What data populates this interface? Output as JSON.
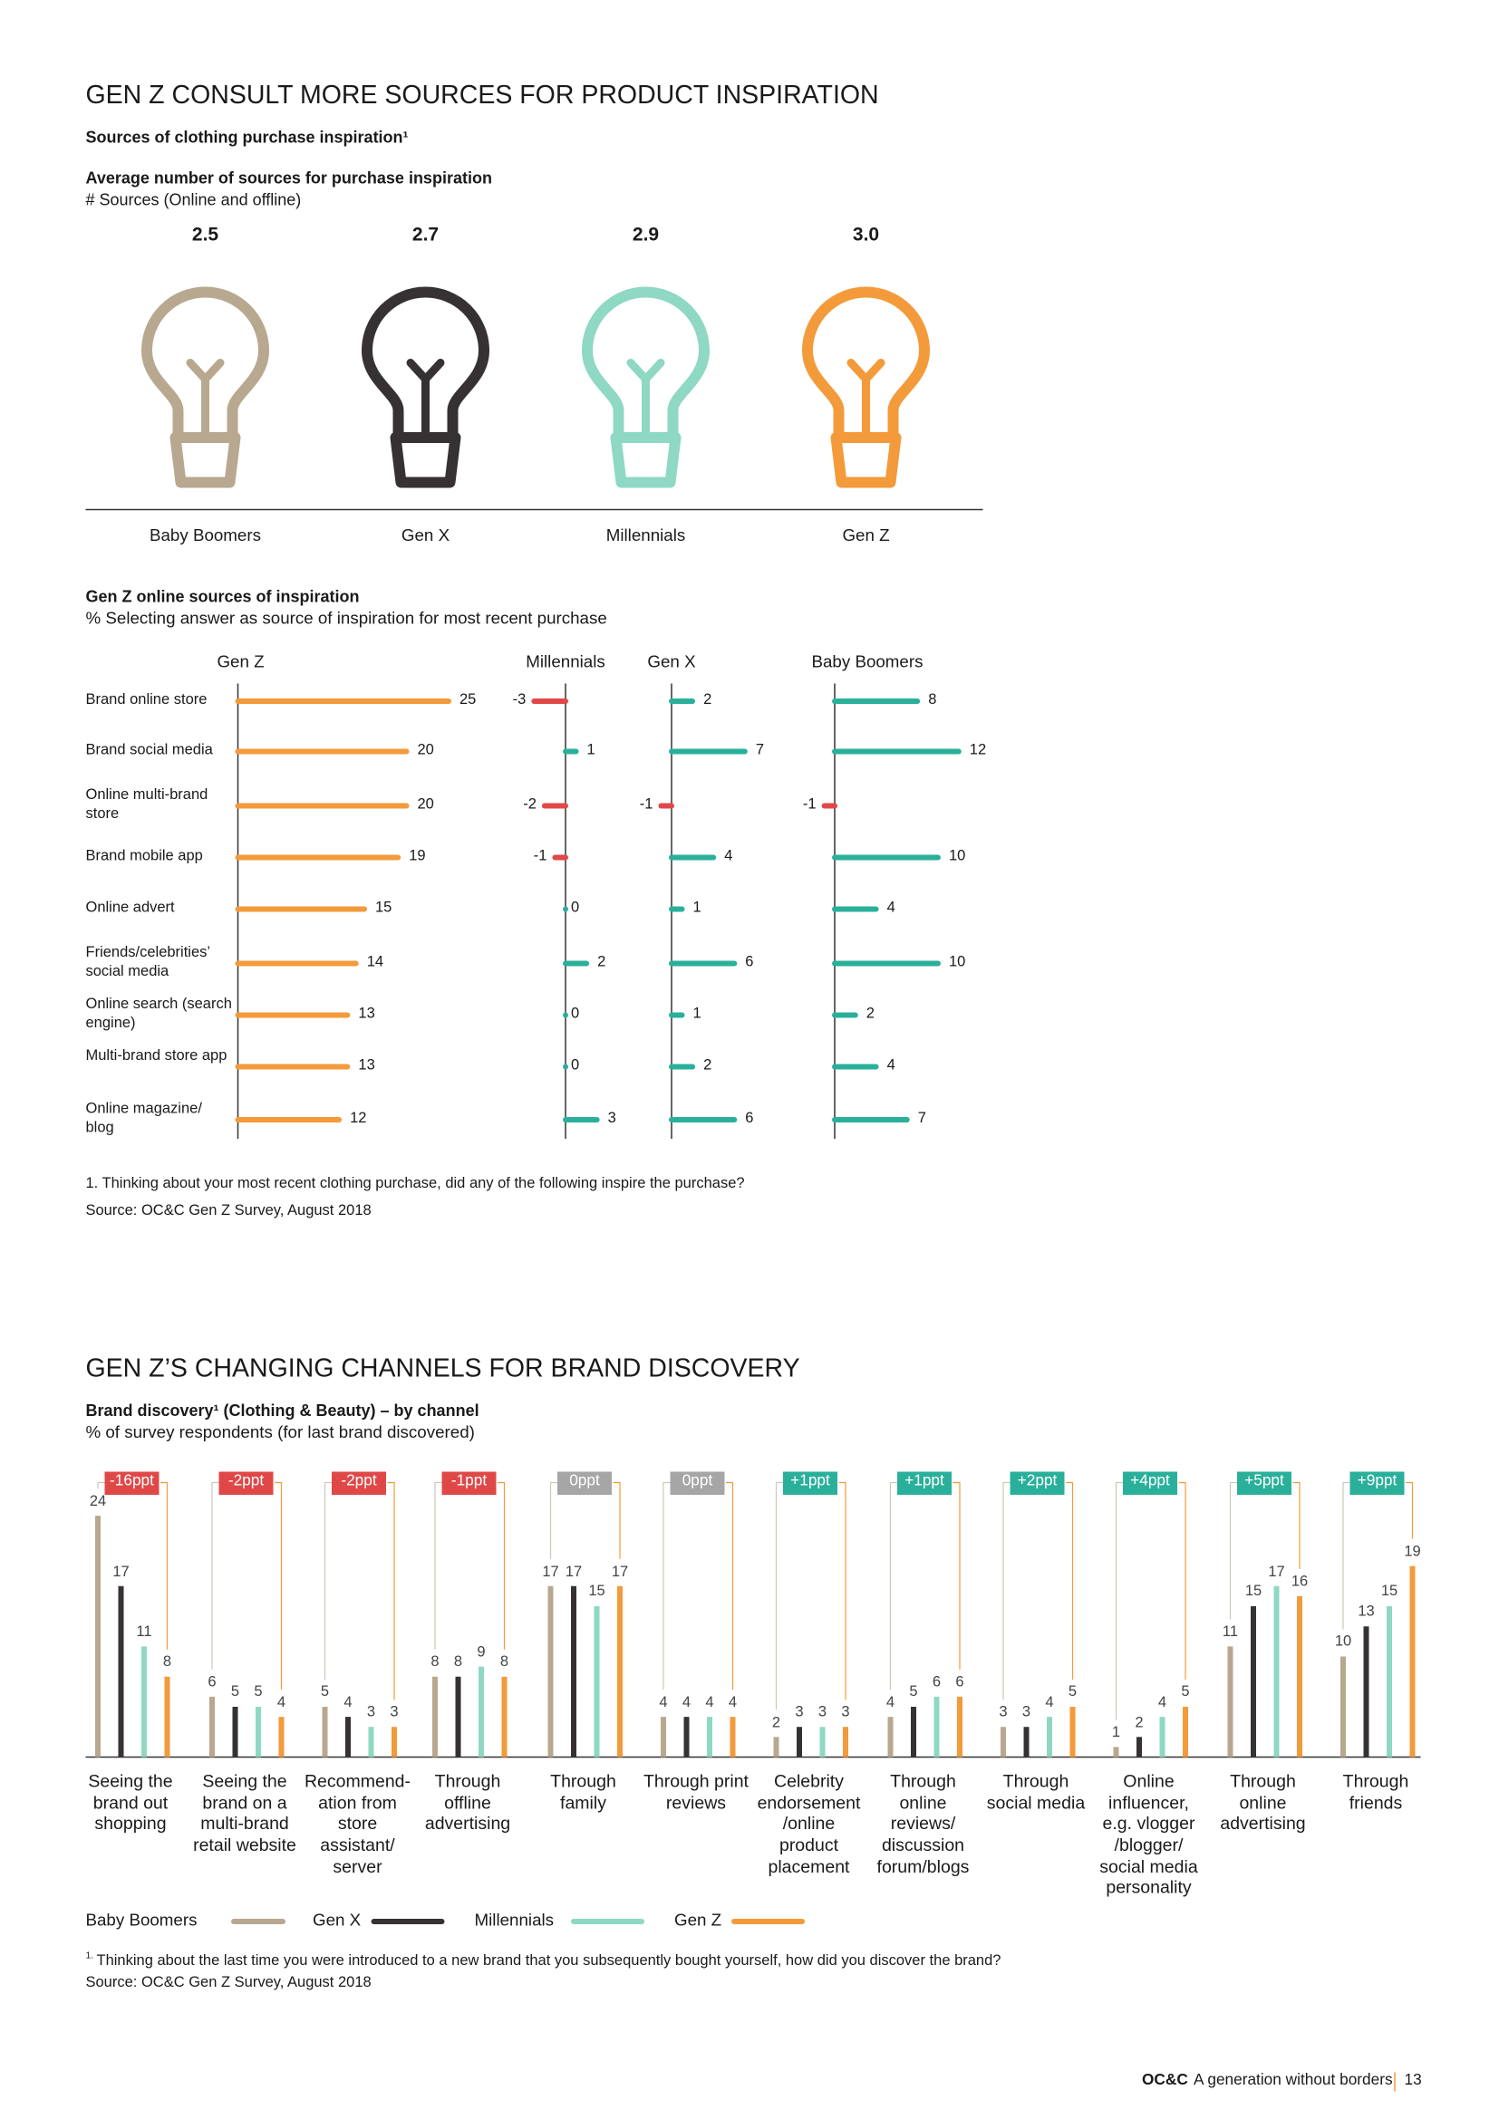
{
  "chart_data": [
    {
      "type": "pictogram",
      "heading": "GEN Z CONSULT MORE SOURCES FOR PRODUCT INSPIRATION",
      "subheading": "Sources of clothing purchase inspiration¹",
      "title": "Average number of sources for purchase inspiration",
      "subtitle": "# Sources (Online and offline)",
      "categories": [
        "Baby Boomers",
        "Gen X",
        "Millennials",
        "Gen Z"
      ],
      "values": [
        2.5,
        2.7,
        2.9,
        3.0
      ],
      "value_labels": [
        "2.5",
        "2.7",
        "2.9",
        "3.0"
      ],
      "colors": [
        "#b8a88f",
        "#363233",
        "#8fd8c3",
        "#f39a3b"
      ]
    },
    {
      "type": "bar-panels",
      "title": "Gen Z online sources of inspiration",
      "subtitle": "% Selecting answer as source of inspiration for most recent purchase",
      "categories": [
        "Brand online store",
        "Brand social media",
        "Online multi-brand store",
        "Brand mobile app",
        "Online advert",
        "Friends/celebrities’ social media",
        "Online search (search engine)",
        "Multi-brand store app",
        "Online magazine/ blog"
      ],
      "series": [
        {
          "name": "Gen Z",
          "color": "#f39a3b",
          "values": [
            25,
            20,
            20,
            19,
            15,
            14,
            13,
            13,
            12
          ]
        },
        {
          "name": "Millennials",
          "color": "#2ab09a",
          "values": [
            -3,
            1,
            -2,
            -1,
            0,
            2,
            0,
            0,
            3
          ]
        },
        {
          "name": "Gen X",
          "color": "#2ab09a",
          "values": [
            2,
            7,
            -1,
            4,
            1,
            6,
            1,
            2,
            6
          ]
        },
        {
          "name": "Baby Boomers",
          "color": "#2ab09a",
          "values": [
            8,
            12,
            -1,
            10,
            4,
            10,
            2,
            4,
            7
          ]
        }
      ],
      "negative_color": "#e04848",
      "footnote": "1. Thinking about your most recent clothing purchase, did any of the following inspire the purchase?",
      "source": "Source: OC&C Gen Z Survey, August 2018"
    },
    {
      "type": "grouped-bar",
      "heading": "GEN Z’S CHANGING CHANNELS FOR BRAND DISCOVERY",
      "title": "Brand discovery¹ (Clothing & Beauty) – by channel",
      "subtitle": "% of survey respondents (for last brand discovered)",
      "categories": [
        "Seeing the brand out shopping",
        "Seeing the brand on a multi-brand retail website",
        "Recommend-ation from store assistant/ server",
        "Through offline advertising",
        "Through family",
        "Through print reviews",
        "Celebrity endorsement /online product placement",
        "Through online reviews/ discussion forum/blogs",
        "Through social media",
        "Online influencer, e.g. vlogger /blogger/ social media personality",
        "Through online advertising",
        "Through friends"
      ],
      "series": [
        {
          "name": "Baby Boomers",
          "color": "#b8a88f",
          "values": [
            24,
            6,
            5,
            8,
            17,
            4,
            2,
            4,
            3,
            1,
            11,
            10
          ]
        },
        {
          "name": "Gen X",
          "color": "#363233",
          "values": [
            17,
            5,
            4,
            8,
            17,
            4,
            3,
            5,
            3,
            2,
            15,
            13
          ]
        },
        {
          "name": "Millennials",
          "color": "#8fd8c3",
          "values": [
            11,
            5,
            3,
            9,
            15,
            4,
            3,
            6,
            4,
            4,
            17,
            15
          ]
        },
        {
          "name": "Gen Z",
          "color": "#f39a3b",
          "values": [
            8,
            4,
            3,
            8,
            17,
            4,
            3,
            6,
            5,
            5,
            16,
            19
          ]
        }
      ],
      "annotations": [
        "-16ppt",
        "-2ppt",
        "-2ppt",
        "-1ppt",
        "0ppt",
        "0ppt",
        "+1ppt",
        "+1ppt",
        "+2ppt",
        "+4ppt",
        "+5ppt",
        "+9ppt"
      ],
      "annotation_colors": [
        "#e04848",
        "#e04848",
        "#e04848",
        "#e04848",
        "#a6a6a6",
        "#a6a6a6",
        "#2ab09a",
        "#2ab09a",
        "#2ab09a",
        "#2ab09a",
        "#2ab09a",
        "#2ab09a"
      ],
      "footnote_marker": "1.",
      "footnote": "Thinking about the last time you were introduced to a new brand that you subsequently bought yourself, how did you discover the brand?",
      "source": "Source: OC&C Gen Z Survey, August 2018"
    }
  ],
  "footer": {
    "brand": "OC&C",
    "text": "A generation without borders",
    "page": "13"
  }
}
